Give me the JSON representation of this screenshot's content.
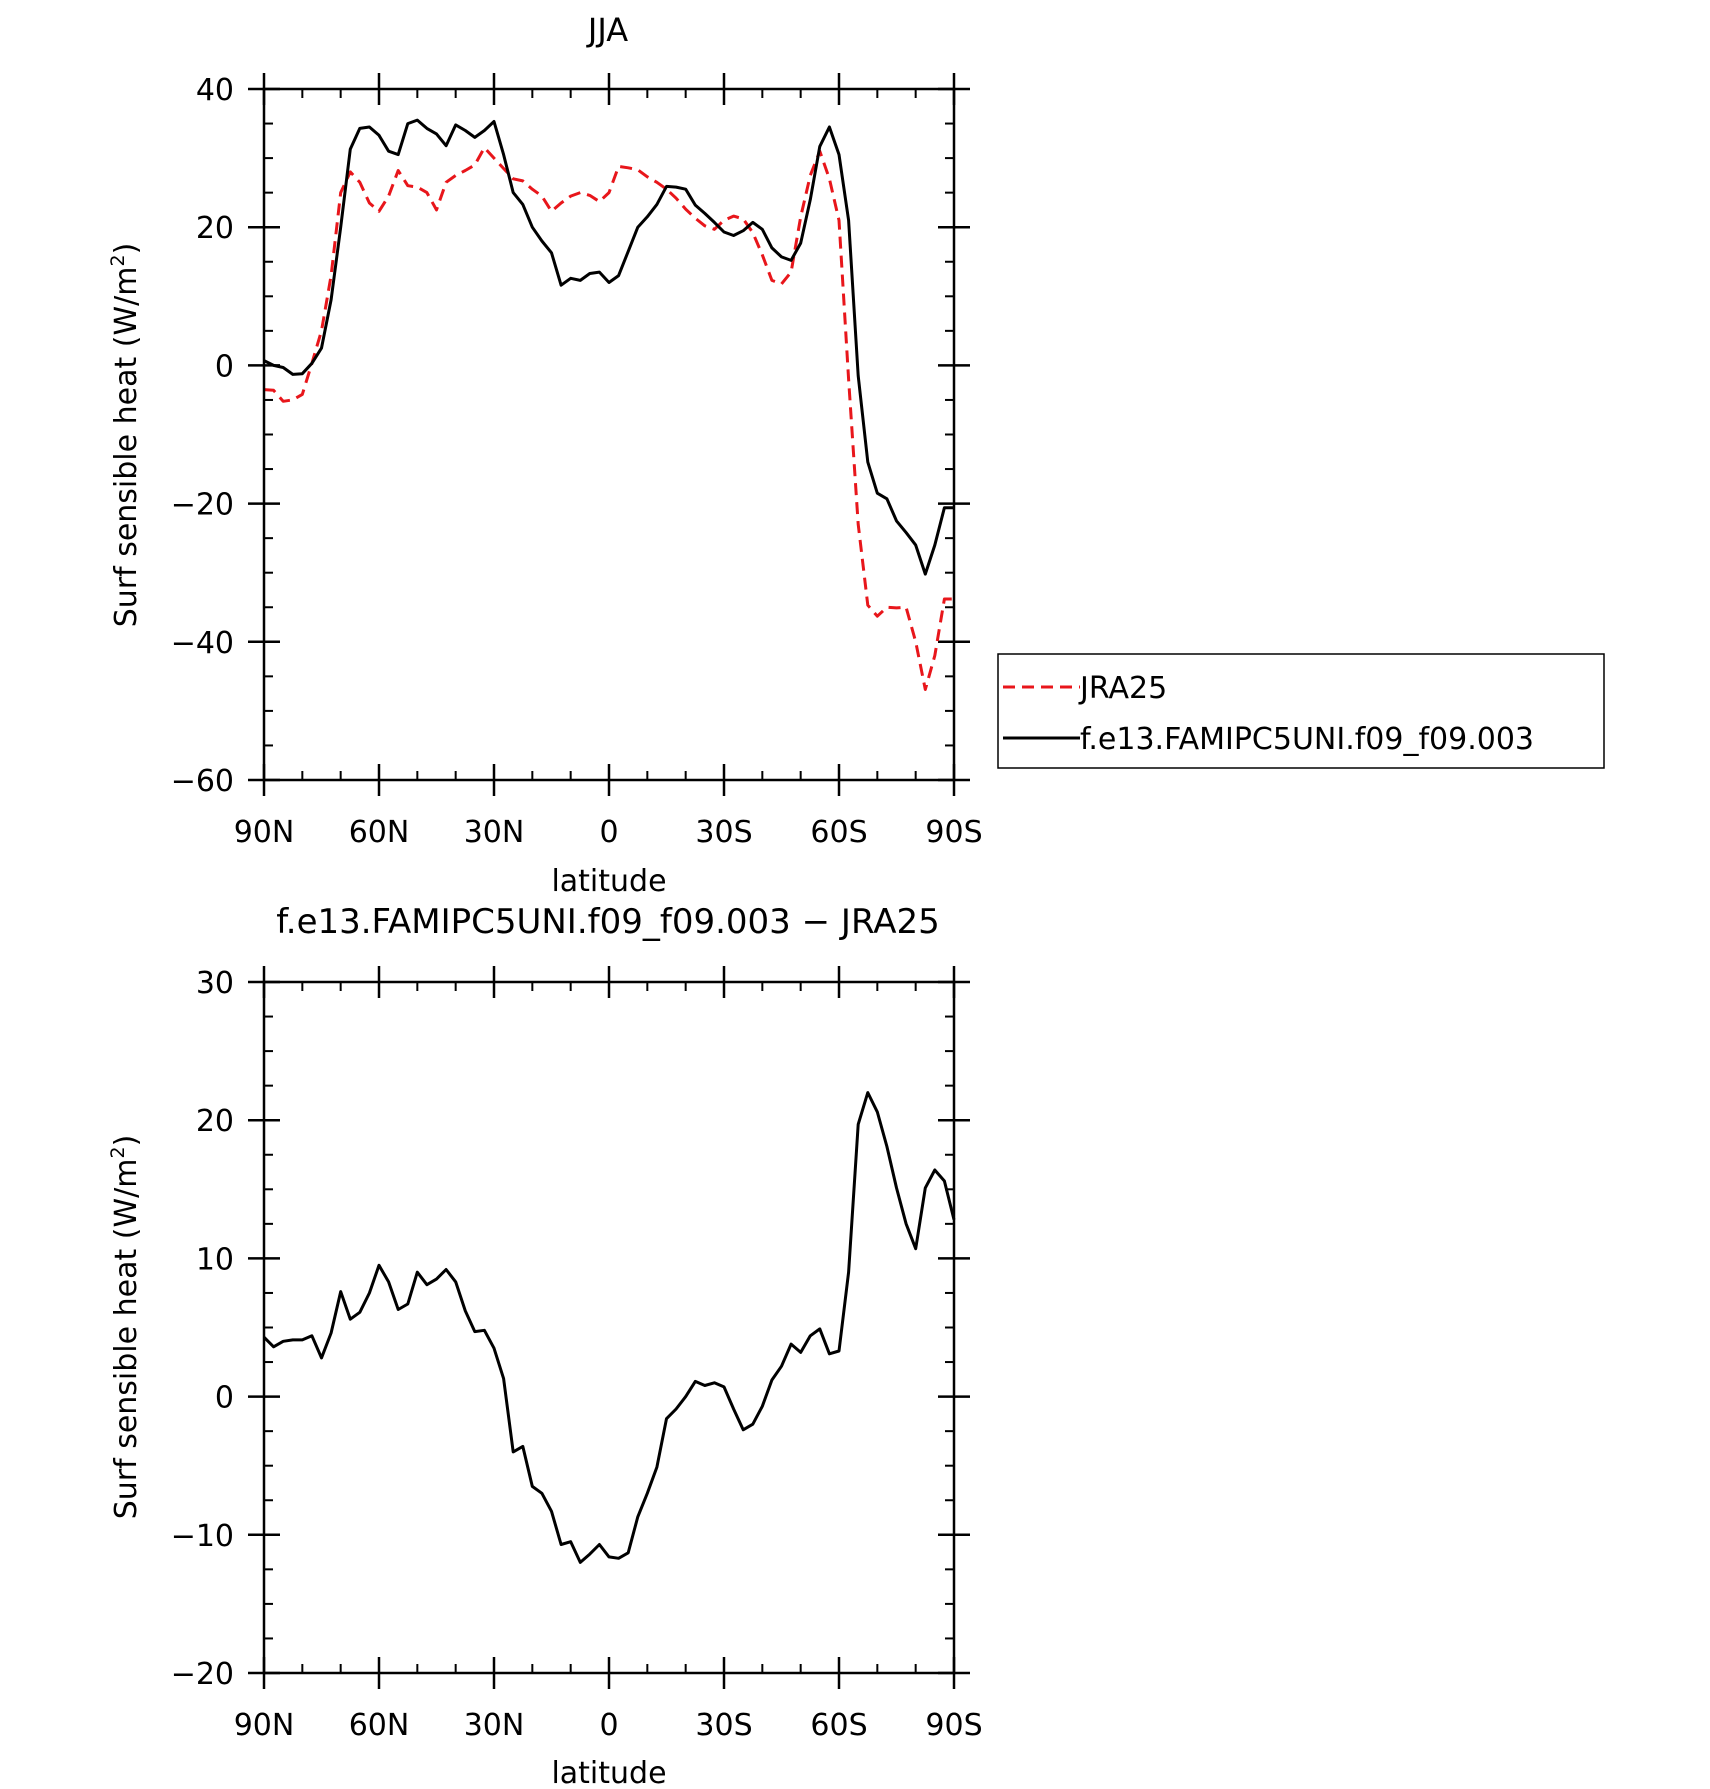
{
  "chart_data": [
    {
      "type": "line",
      "title": "JJA",
      "xlabel": "latitude",
      "ylabel": "Surf sensible heat (W/m",
      "ylabel_sup": "2",
      "ylabel_end": ")",
      "xlim": [
        90,
        -90
      ],
      "ylim": [
        -60,
        40
      ],
      "xticks": [
        90,
        60,
        30,
        0,
        -30,
        -60,
        -90
      ],
      "xtick_labels": [
        "90N",
        "60N",
        "30N",
        "0",
        "30S",
        "60S",
        "90S"
      ],
      "yticks": [
        -60,
        -40,
        -20,
        0,
        20,
        40
      ],
      "ytick_labels": [
        "−60",
        "−40",
        "−20",
        "0",
        "20",
        "40"
      ],
      "legend": "outside-right",
      "x": [
        90,
        87.5,
        85,
        82.5,
        80,
        77.5,
        75,
        72.5,
        70,
        67.5,
        65,
        62.5,
        60,
        57.5,
        55,
        52.5,
        50,
        47.5,
        45,
        42.5,
        40,
        37.5,
        35,
        32.5,
        30,
        27.5,
        25,
        22.5,
        20,
        17.5,
        15,
        12.5,
        10,
        7.5,
        5,
        2.5,
        0,
        -2.5,
        -5,
        -7.5,
        -10,
        -12.5,
        -15,
        -17.5,
        -20,
        -22.5,
        -25,
        -27.5,
        -30,
        -32.5,
        -35,
        -37.5,
        -40,
        -42.5,
        -45,
        -47.5,
        -50,
        -52.5,
        -55,
        -57.5,
        -60,
        -62.5,
        -65,
        -67.5,
        -70,
        -72.5,
        -75,
        -77.5,
        -80,
        -82.5,
        -85,
        -87.5,
        -90
      ],
      "series": [
        {
          "name": "JRA25",
          "color": "#e8161b",
          "dash": "dashed",
          "values": [
            -3.5,
            -3.6,
            -5.2,
            -5.0,
            -4.2,
            0.3,
            5.0,
            13.0,
            25.0,
            28.0,
            26.5,
            23.5,
            22.3,
            24.5,
            28.2,
            26.0,
            25.8,
            25.0,
            22.5,
            26.5,
            27.5,
            28.2,
            29.0,
            31.5,
            30.0,
            28.5,
            27.0,
            26.7,
            25.5,
            24.5,
            22.3,
            23.5,
            24.5,
            25.0,
            24.6,
            23.7,
            25.0,
            28.8,
            28.6,
            28.3,
            27.3,
            26.5,
            25.5,
            24.2,
            22.6,
            21.3,
            20.2,
            19.7,
            21.0,
            21.6,
            21.2,
            19.2,
            16.0,
            12.3,
            11.8,
            13.5,
            21.5,
            27.5,
            31.0,
            27.0,
            21.0,
            -2.0,
            -23.0,
            -34.7,
            -36.3,
            -35.0,
            -35.1,
            -35.0,
            -40.0,
            -46.9,
            -42.0,
            -33.8,
            -33.8
          ]
        },
        {
          "name": "f.e13.FAMIPC5UNI.f09_f09.003",
          "color": "#000000",
          "dash": "solid",
          "values": [
            0.7,
            0.0,
            -0.3,
            -1.3,
            -1.2,
            0.3,
            2.5,
            9.5,
            20.0,
            31.3,
            34.3,
            34.5,
            33.3,
            31.0,
            30.5,
            35.0,
            35.5,
            34.3,
            33.5,
            31.8,
            34.8,
            34.0,
            33.0,
            34.0,
            35.3,
            30.5,
            25.0,
            23.3,
            20.0,
            18.0,
            16.3,
            11.6,
            12.6,
            12.3,
            13.3,
            13.5,
            12.0,
            13.0,
            16.5,
            20.0,
            21.5,
            23.3,
            25.9,
            25.8,
            25.5,
            23.2,
            22.0,
            20.7,
            19.3,
            18.8,
            19.5,
            20.7,
            19.7,
            17.0,
            15.7,
            15.2,
            17.7,
            24.0,
            31.7,
            34.5,
            30.5,
            21.0,
            -1.5,
            -14.0,
            -18.5,
            -19.3,
            -22.5,
            -24.2,
            -26.0,
            -30.2,
            -26.0,
            -20.6,
            -20.6
          ]
        }
      ]
    },
    {
      "type": "line",
      "title": "f.e13.FAMIPC5UNI.f09_f09.003 − JRA25",
      "xlabel": "latitude",
      "ylabel": "Surf sensible heat (W/m",
      "ylabel_sup": "2",
      "ylabel_end": ")",
      "xlim": [
        90,
        -90
      ],
      "ylim": [
        -20,
        30
      ],
      "xticks": [
        90,
        60,
        30,
        0,
        -30,
        -60,
        -90
      ],
      "xtick_labels": [
        "90N",
        "60N",
        "30N",
        "0",
        "30S",
        "60S",
        "90S"
      ],
      "yticks": [
        -20,
        -10,
        0,
        10,
        20,
        30
      ],
      "ytick_labels": [
        "−20",
        "−10",
        "0",
        "10",
        "20",
        "30"
      ],
      "x": [
        90,
        87.5,
        85,
        82.5,
        80,
        77.5,
        75,
        72.5,
        70,
        67.5,
        65,
        62.5,
        60,
        57.5,
        55,
        52.5,
        50,
        47.5,
        45,
        42.5,
        40,
        37.5,
        35,
        32.5,
        30,
        27.5,
        25,
        22.5,
        20,
        17.5,
        15,
        12.5,
        10,
        7.5,
        5,
        2.5,
        0,
        -2.5,
        -5,
        -7.5,
        -10,
        -12.5,
        -15,
        -17.5,
        -20,
        -22.5,
        -25,
        -27.5,
        -30,
        -32.5,
        -35,
        -37.5,
        -40,
        -42.5,
        -45,
        -47.5,
        -50,
        -52.5,
        -55,
        -57.5,
        -60,
        -62.5,
        -65,
        -67.5,
        -70,
        -72.5,
        -75,
        -77.5,
        -80,
        -82.5,
        -85,
        -87.5,
        -90
      ],
      "series": [
        {
          "name": "",
          "color": "#000000",
          "dash": "solid",
          "values": [
            4.3,
            3.6,
            4.0,
            4.1,
            4.1,
            4.4,
            2.8,
            4.6,
            7.6,
            5.6,
            6.1,
            7.5,
            9.5,
            8.3,
            6.3,
            6.7,
            9.0,
            8.1,
            8.5,
            9.2,
            8.3,
            6.2,
            4.7,
            4.8,
            3.5,
            1.3,
            -4.0,
            -3.6,
            -6.5,
            -7.0,
            -8.3,
            -10.7,
            -10.5,
            -12.0,
            -11.4,
            -10.7,
            -11.6,
            -11.7,
            -11.3,
            -8.7,
            -7.0,
            -5.1,
            -1.6,
            -0.9,
            0.0,
            1.1,
            0.8,
            1.0,
            0.7,
            -0.9,
            -2.4,
            -2.0,
            -0.7,
            1.2,
            2.2,
            3.8,
            3.2,
            4.4,
            4.9,
            3.1,
            3.3,
            9.0,
            19.7,
            22.0,
            20.6,
            18.1,
            15.1,
            12.5,
            10.7,
            15.1,
            16.4,
            15.6,
            12.8
          ]
        }
      ]
    }
  ]
}
